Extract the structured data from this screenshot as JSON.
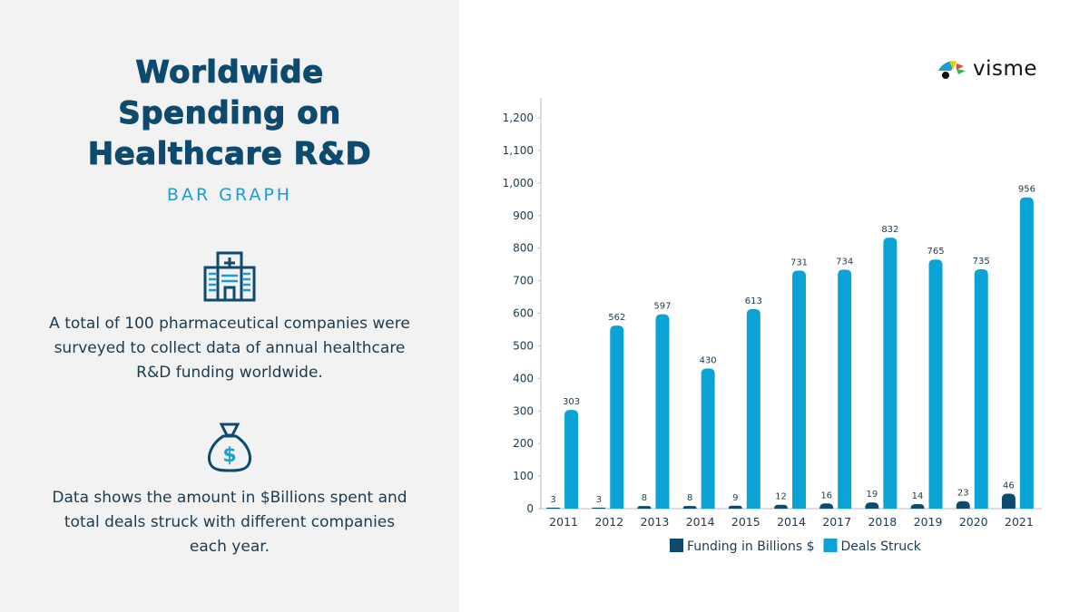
{
  "left": {
    "title_lines": [
      "Worldwide",
      "Spending on",
      "Healthcare R&D"
    ],
    "subtitle": "BAR GRAPH",
    "para1": "A total of 100 pharmaceutical companies were surveyed to collect data of annual healthcare R&D funding worldwide.",
    "para2": "Data shows the amount in $Billions spent and total deals struck with different companies each year.",
    "icon1": "hospital-icon",
    "icon2": "money-bag-icon"
  },
  "logo": {
    "text": "visme"
  },
  "chart_data": {
    "type": "bar",
    "categories": [
      "2011",
      "2012",
      "2013",
      "2014",
      "2015",
      "2014",
      "2017",
      "2018",
      "2019",
      "2020",
      "2021"
    ],
    "series": [
      {
        "name": "Funding in Billions $",
        "color": "#0d4a6e",
        "values": [
          3,
          3,
          8,
          8,
          9,
          12,
          16,
          19,
          14,
          23,
          46
        ]
      },
      {
        "name": "Deals Struck",
        "color": "#0ba3d6",
        "values": [
          303,
          562,
          597,
          430,
          613,
          731,
          734,
          832,
          765,
          735,
          956
        ]
      }
    ],
    "ylim": [
      0,
      1200
    ],
    "yticks": [
      "0",
      "100",
      "200",
      "300",
      "400",
      "500",
      "600",
      "700",
      "800",
      "900",
      "1,000",
      "1,100",
      "1,200"
    ],
    "grid": false,
    "legend": "bottom",
    "data_labels": true
  }
}
